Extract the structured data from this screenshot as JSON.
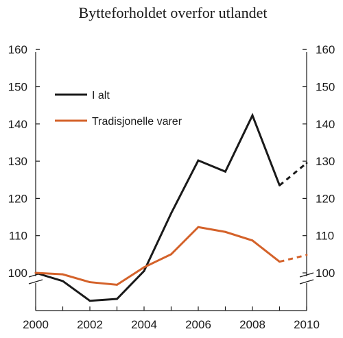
{
  "chart_data": {
    "type": "line",
    "title": "Bytteforholdet overfor utlandet",
    "xlabel": "",
    "ylabel": "",
    "x": [
      2000,
      2001,
      2002,
      2003,
      2004,
      2005,
      2006,
      2007,
      2008,
      2009,
      2010
    ],
    "xticks": [
      2000,
      2002,
      2004,
      2006,
      2008,
      2010
    ],
    "yticks": [
      100,
      110,
      120,
      130,
      140,
      150,
      160
    ],
    "ylim": [
      90,
      160
    ],
    "xlim": [
      2000,
      2010
    ],
    "axis_break": true,
    "grid": false,
    "legend_position": "top-left",
    "series": [
      {
        "name": "I alt",
        "color": "#1a1a1a",
        "values": [
          100,
          97.8,
          92.5,
          93,
          100.5,
          116,
          130.2,
          127.2,
          142.3,
          123.5,
          129.5
        ],
        "projection_from": 2009
      },
      {
        "name": "Tradisjonelle varer",
        "color": "#d4622a",
        "values": [
          100,
          99.6,
          97.5,
          96.8,
          101.5,
          105,
          112.3,
          111,
          108.7,
          103,
          104.8
        ],
        "projection_from": 2009
      }
    ]
  }
}
